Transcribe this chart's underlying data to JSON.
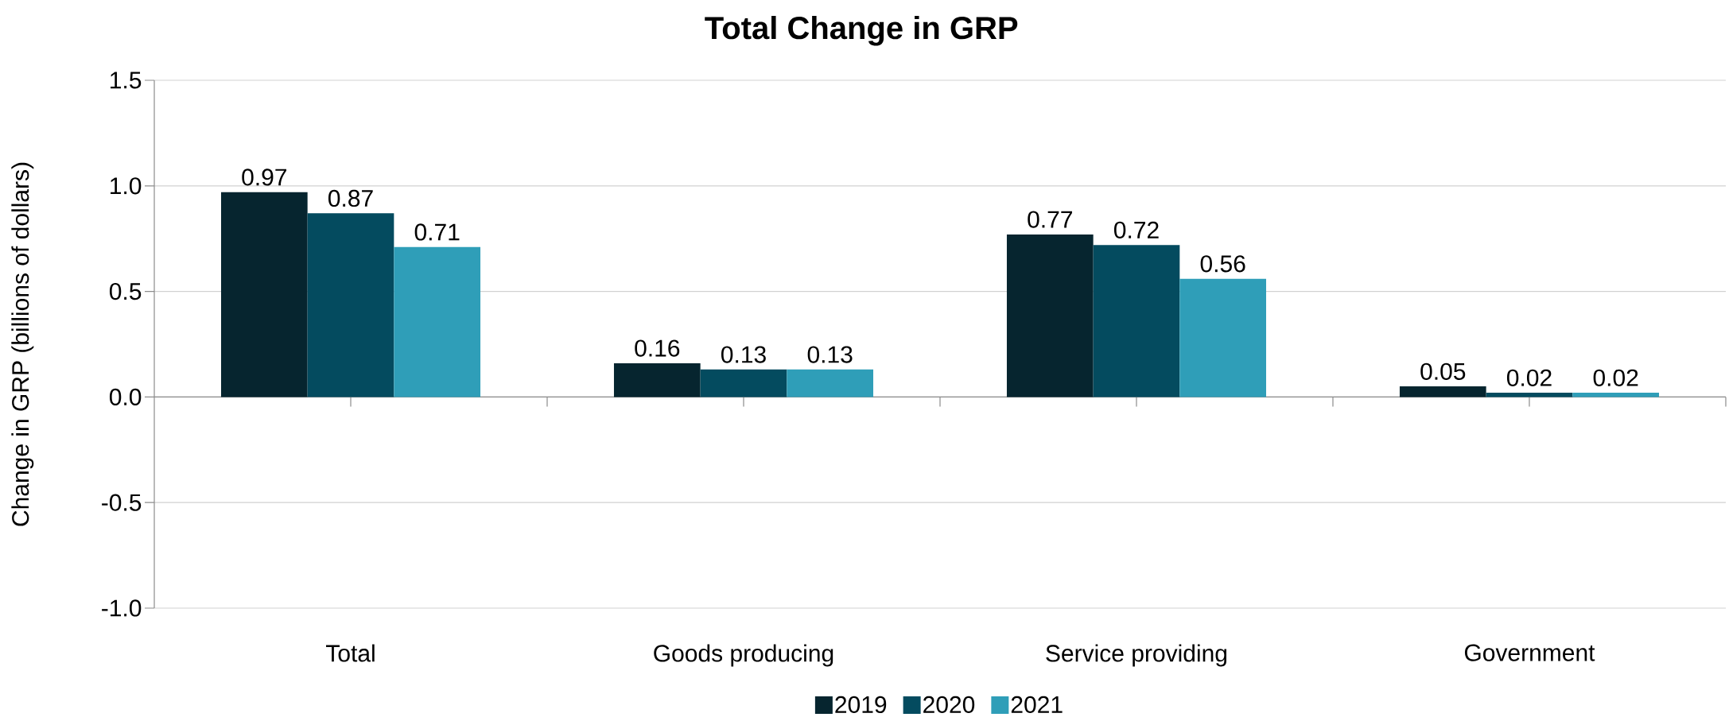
{
  "chart_data": {
    "type": "bar",
    "title": "Total Change in GRP",
    "ylabel": "Change in GRP (billions of dollars)",
    "categories": [
      "Total",
      "Goods producing",
      "Service providing",
      "Government"
    ],
    "series": [
      {
        "name": "2019",
        "color": "#06252f",
        "values": [
          0.97,
          0.16,
          0.77,
          0.05
        ]
      },
      {
        "name": "2020",
        "color": "#044b5f",
        "values": [
          0.87,
          0.13,
          0.72,
          0.02
        ]
      },
      {
        "name": "2021",
        "color": "#2f9eb8",
        "values": [
          0.71,
          0.13,
          0.56,
          0.02
        ]
      }
    ],
    "ylim": [
      -1.0,
      1.5
    ],
    "yticks": [
      {
        "value": -1.0,
        "label": "-1.0"
      },
      -0.5,
      {
        "value": 0.0,
        "label": "0.0"
      },
      0.5,
      {
        "value": 1.0,
        "label": "1.0"
      },
      1.5
    ],
    "grid": "y",
    "legend": "bottom",
    "data_labels": true
  }
}
